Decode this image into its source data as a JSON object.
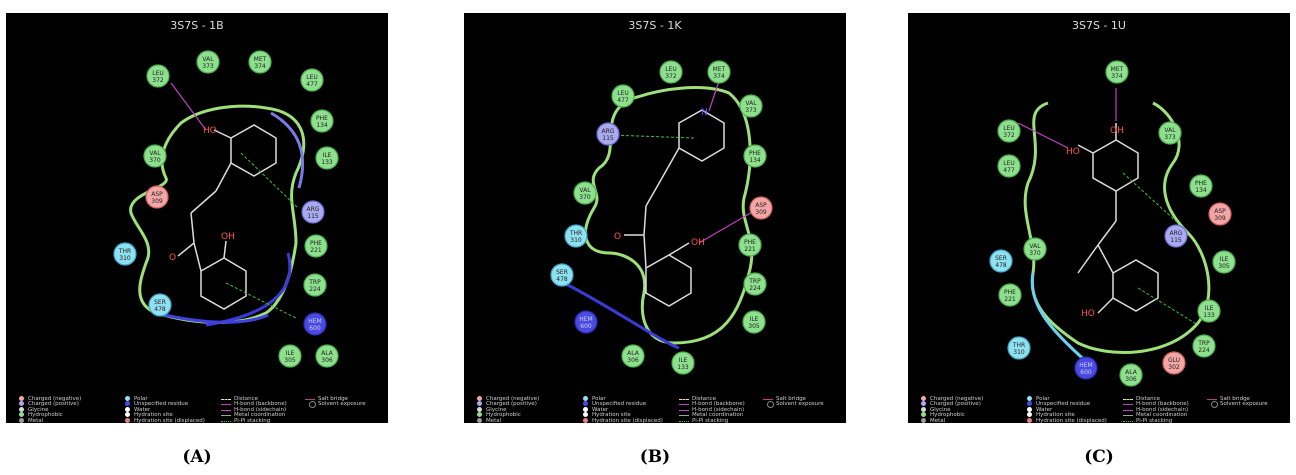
{
  "panels": [
    {
      "title": "3S7S - 1B",
      "caption": "(A)",
      "residues": [
        {
          "name": "LEU",
          "num": "372",
          "type": "hydrophobic"
        },
        {
          "name": "VAL",
          "num": "373",
          "type": "hydrophobic"
        },
        {
          "name": "MET",
          "num": "374",
          "type": "hydrophobic"
        },
        {
          "name": "LEU",
          "num": "477",
          "type": "hydrophobic"
        },
        {
          "name": "PHE",
          "num": "134",
          "type": "hydrophobic"
        },
        {
          "name": "ILE",
          "num": "133",
          "type": "hydrophobic"
        },
        {
          "name": "VAL",
          "num": "370",
          "type": "hydrophobic"
        },
        {
          "name": "ASP",
          "num": "309",
          "type": "negative"
        },
        {
          "name": "ARG",
          "num": "115",
          "type": "positive"
        },
        {
          "name": "PHE",
          "num": "221",
          "type": "hydrophobic"
        },
        {
          "name": "THR",
          "num": "310",
          "type": "polar"
        },
        {
          "name": "TRP",
          "num": "224",
          "type": "hydrophobic"
        },
        {
          "name": "SER",
          "num": "478",
          "type": "polar"
        },
        {
          "name": "HEM",
          "num": "600",
          "type": "unspecified"
        },
        {
          "name": "ILE",
          "num": "305",
          "type": "hydrophobic"
        },
        {
          "name": "ALA",
          "num": "306",
          "type": "hydrophobic"
        }
      ],
      "ligand_labels": [
        "HO",
        "OH",
        "O"
      ]
    },
    {
      "title": "3S7S - 1K",
      "caption": "(B)",
      "residues": [
        {
          "name": "LEU",
          "num": "372",
          "type": "hydrophobic"
        },
        {
          "name": "MET",
          "num": "374",
          "type": "hydrophobic"
        },
        {
          "name": "LEU",
          "num": "477",
          "type": "hydrophobic"
        },
        {
          "name": "VAL",
          "num": "373",
          "type": "hydrophobic"
        },
        {
          "name": "ARG",
          "num": "115",
          "type": "positive"
        },
        {
          "name": "PHE",
          "num": "134",
          "type": "hydrophobic"
        },
        {
          "name": "VAL",
          "num": "370",
          "type": "hydrophobic"
        },
        {
          "name": "ASP",
          "num": "309",
          "type": "negative"
        },
        {
          "name": "THR",
          "num": "310",
          "type": "polar"
        },
        {
          "name": "PHE",
          "num": "221",
          "type": "hydrophobic"
        },
        {
          "name": "SER",
          "num": "478",
          "type": "polar"
        },
        {
          "name": "TRP",
          "num": "224",
          "type": "hydrophobic"
        },
        {
          "name": "HEM",
          "num": "600",
          "type": "unspecified"
        },
        {
          "name": "ILE",
          "num": "305",
          "type": "hydrophobic"
        },
        {
          "name": "ALA",
          "num": "306",
          "type": "hydrophobic"
        },
        {
          "name": "ILE",
          "num": "133",
          "type": "hydrophobic"
        }
      ],
      "ligand_labels": [
        "N",
        "OH",
        "O"
      ]
    },
    {
      "title": "3S7S - 1U",
      "caption": "(C)",
      "residues": [
        {
          "name": "MET",
          "num": "374",
          "type": "hydrophobic"
        },
        {
          "name": "LEU",
          "num": "372",
          "type": "hydrophobic"
        },
        {
          "name": "VAL",
          "num": "373",
          "type": "hydrophobic"
        },
        {
          "name": "LEU",
          "num": "477",
          "type": "hydrophobic"
        },
        {
          "name": "PHE",
          "num": "134",
          "type": "hydrophobic"
        },
        {
          "name": "ASP",
          "num": "309",
          "type": "negative"
        },
        {
          "name": "ARG",
          "num": "115",
          "type": "positive"
        },
        {
          "name": "VAL",
          "num": "370",
          "type": "hydrophobic"
        },
        {
          "name": "SER",
          "num": "478",
          "type": "polar"
        },
        {
          "name": "ILE",
          "num": "305",
          "type": "hydrophobic"
        },
        {
          "name": "PHE",
          "num": "221",
          "type": "hydrophobic"
        },
        {
          "name": "ILE",
          "num": "133",
          "type": "hydrophobic"
        },
        {
          "name": "TRP",
          "num": "224",
          "type": "hydrophobic"
        },
        {
          "name": "THR",
          "num": "310",
          "type": "polar"
        },
        {
          "name": "HEM",
          "num": "600",
          "type": "unspecified"
        },
        {
          "name": "ALA",
          "num": "306",
          "type": "hydrophobic"
        },
        {
          "name": "GLU",
          "num": "302",
          "type": "negative"
        }
      ],
      "ligand_labels": [
        "OH",
        "HO",
        "HO"
      ]
    }
  ],
  "legend": [
    {
      "label": "Charged (negative)",
      "kind": "dot",
      "color": "#f4a6a6"
    },
    {
      "label": "Charged (positive)",
      "kind": "dot",
      "color": "#a9a9f0"
    },
    {
      "label": "Glycine",
      "kind": "dot",
      "color": "#d8d8d8"
    },
    {
      "label": "Hydrophobic",
      "kind": "dot",
      "color": "#8ee08e"
    },
    {
      "label": "Metal",
      "kind": "dot",
      "color": "#9a9a9a"
    },
    {
      "label": "Polar",
      "kind": "dot",
      "color": "#8fe0f0"
    },
    {
      "label": "Unspecified residue",
      "kind": "dot",
      "color": "#4a4ae0"
    },
    {
      "label": "Water",
      "kind": "dot",
      "color": "#ffffff"
    },
    {
      "label": "Hydration site",
      "kind": "dot",
      "color": "#ffffff"
    },
    {
      "label": "Hydration site (displaced)",
      "kind": "xdot",
      "color": "#e08080"
    },
    {
      "label": "Distance",
      "kind": "dash",
      "color": "#f0e0a0"
    },
    {
      "label": "H-bond (backbone)",
      "kind": "arrow",
      "color": "#c040c0"
    },
    {
      "label": "H-bond (sidechain)",
      "kind": "arrow",
      "color": "#c040c0"
    },
    {
      "label": "Metal coordination",
      "kind": "line",
      "color": "#a0a0a0"
    },
    {
      "label": "Pi-Pi stacking",
      "kind": "pipi",
      "color": "#40c040"
    },
    {
      "label": "Salt bridge",
      "kind": "salt",
      "color": "#c04080"
    },
    {
      "label": "Solvent exposure",
      "kind": "ring",
      "color": "#888888"
    }
  ],
  "colors": {
    "hydrophobic": "#8ee08e",
    "polar": "#8fe0f0",
    "negative": "#f4a6a6",
    "positive": "#a9a9f0",
    "unspecified": "#4a4ae0",
    "hbond": "#c040c0",
    "pipi": "#40c040"
  }
}
